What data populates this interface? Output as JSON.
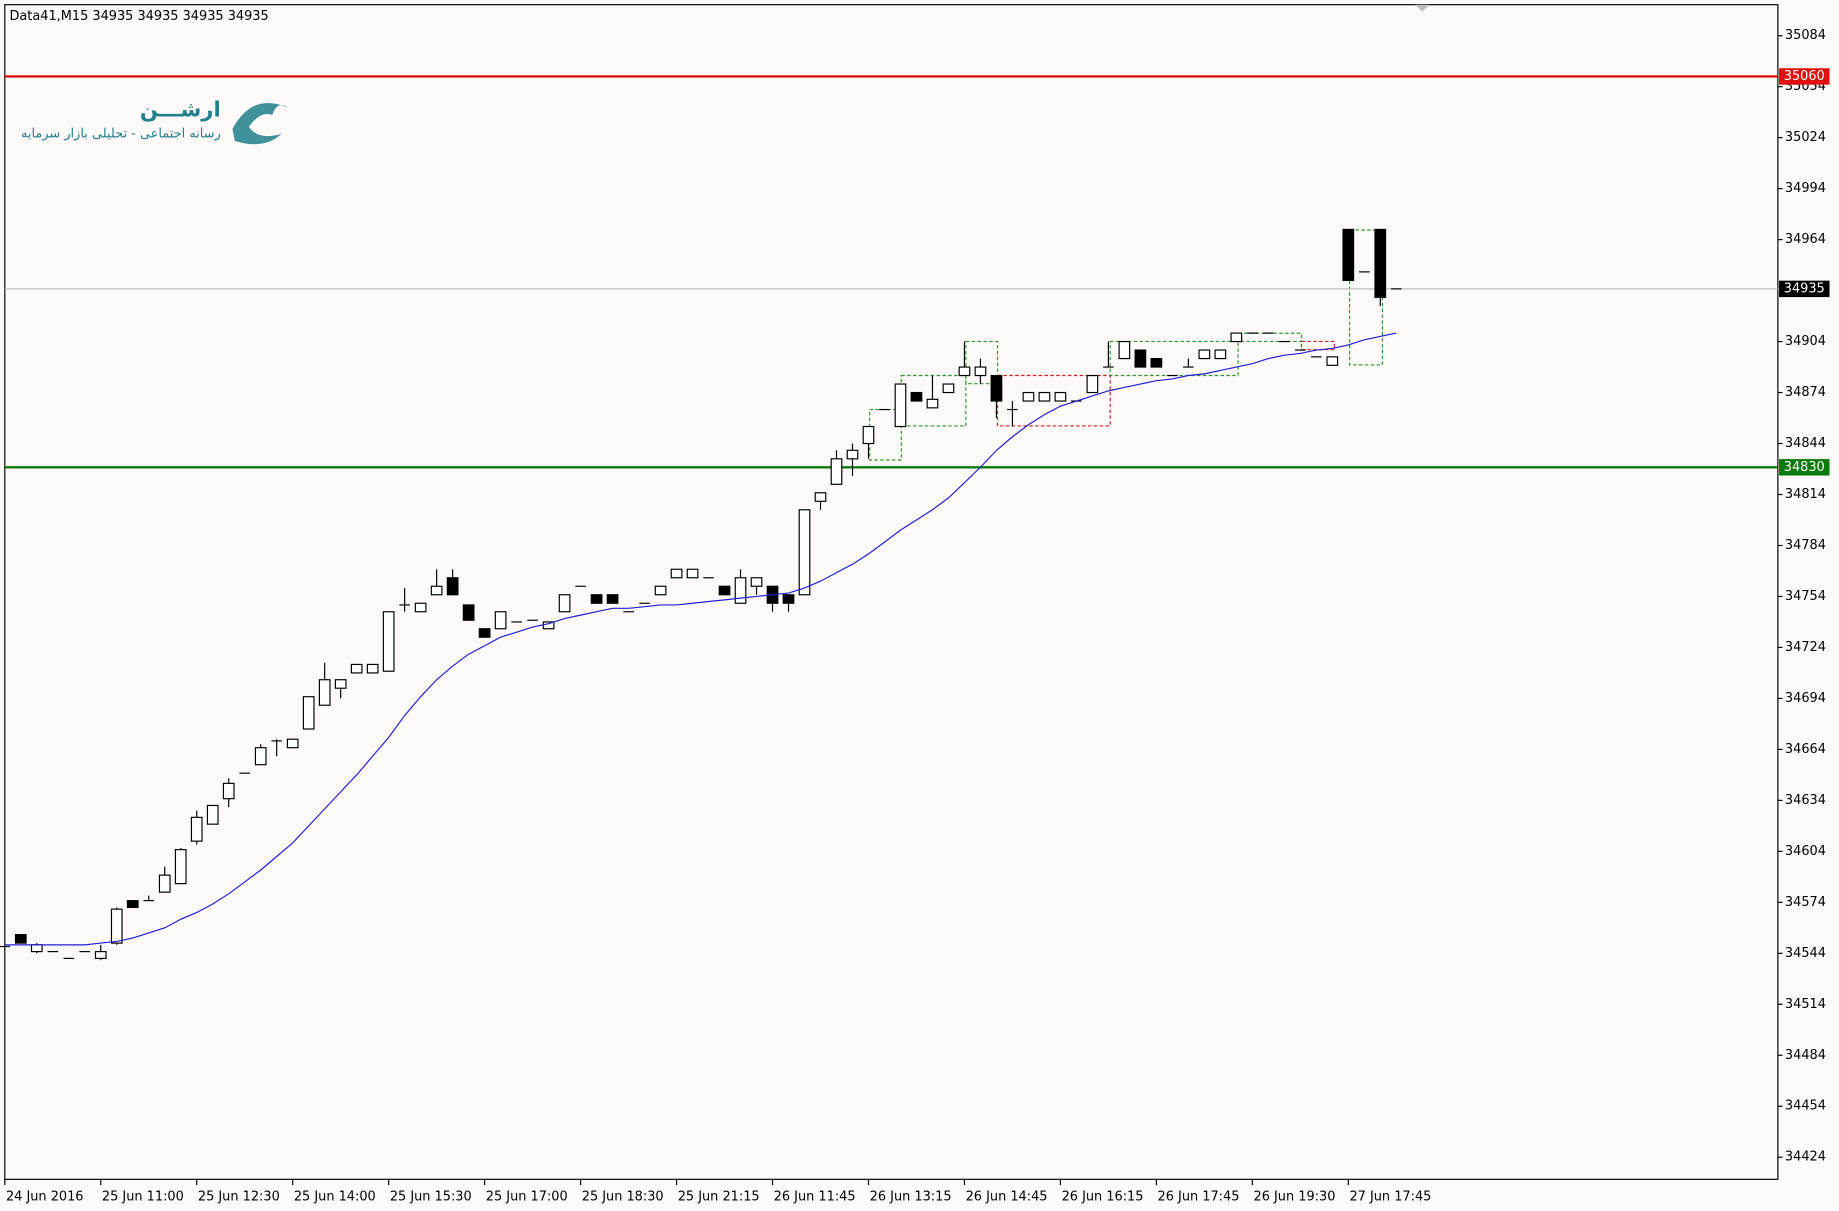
{
  "chart_data": {
    "type": "candlestick",
    "header": "Data41,M15  34935 34935 34935 34935",
    "logo_title": "ارشـــن",
    "logo_subtitle": "رسانه اجتماعی - تحلیلی بازار سرمایه",
    "categories": [
      "24 Jun 2016",
      null,
      null,
      null,
      null,
      null,
      "25 Jun 11:00",
      null,
      null,
      null,
      null,
      null,
      "25 Jun 12:30",
      null,
      null,
      null,
      null,
      null,
      "25 Jun 14:00",
      null,
      null,
      null,
      null,
      null,
      "25 Jun 15:30",
      null,
      null,
      null,
      null,
      null,
      "25 Jun 17:00",
      null,
      null,
      null,
      null,
      null,
      "25 Jun 18:30",
      null,
      null,
      null,
      null,
      null,
      "25 Jun 21:15",
      null,
      null,
      null,
      null,
      null,
      "26 Jun 11:45",
      null,
      null,
      null,
      null,
      null,
      "26 Jun 13:15",
      null,
      null,
      null,
      null,
      null,
      "26 Jun 14:45",
      null,
      null,
      null,
      null,
      null,
      "26 Jun 16:15",
      null,
      null,
      null,
      null,
      null,
      "26 Jun 17:45",
      null,
      null,
      null,
      null,
      null,
      "26 Jun 19:30",
      null,
      null,
      null,
      null,
      null,
      "27 Jun 17:45",
      null,
      null,
      null
    ],
    "open": [
      34548,
      34555,
      34545,
      34545,
      34541,
      34545,
      34541,
      34550,
      34575,
      34575,
      34580,
      34585,
      34610,
      34620,
      34635,
      34650,
      34655,
      34669,
      34665,
      34676,
      34690,
      34700,
      34709,
      34709,
      34710,
      34749,
      34745,
      34755,
      34765,
      34749,
      34735,
      34735,
      34739,
      34740,
      34735,
      34745,
      34760,
      34755,
      34755,
      34745,
      34750,
      34755,
      34765,
      34765,
      34765,
      34760,
      34750,
      34760,
      34760,
      34755,
      34755,
      34810,
      34820,
      34835,
      34844,
      34864,
      34854,
      34874,
      34865,
      34874,
      34884,
      34884,
      34884,
      34864,
      34869,
      34869,
      34869,
      34869,
      34874,
      34889,
      34894,
      34899,
      34894,
      34884,
      34889,
      34894,
      34894,
      34904,
      34909,
      34909,
      34904,
      34899,
      34895,
      34890,
      34970,
      34945,
      34970,
      34935
    ],
    "high": [
      34548,
      34555,
      34550,
      34545,
      34541,
      34545,
      34549,
      34571,
      34575,
      34578,
      34595,
      34606,
      34628,
      34631,
      34647,
      34650,
      34667,
      34670,
      34670,
      34695,
      34715,
      34705,
      34714,
      34714,
      34745,
      34759,
      34750,
      34770,
      34770,
      34749,
      34735,
      34745,
      34739,
      34740,
      34739,
      34755,
      34760,
      34755,
      34755,
      34745,
      34750,
      34760,
      34770,
      34770,
      34765,
      34760,
      34770,
      34765,
      34760,
      34755,
      34805,
      34815,
      34840,
      34844,
      34854,
      34864,
      34879,
      34874,
      34884,
      34879,
      34904,
      34894,
      34884,
      34869,
      34874,
      34874,
      34874,
      34869,
      34884,
      34904,
      34904,
      34899,
      34894,
      34884,
      34894,
      34899,
      34899,
      34909,
      34909,
      34909,
      34904,
      34899,
      34895,
      34895,
      34970,
      34945,
      34970,
      34935
    ],
    "low": [
      34548,
      34550,
      34544,
      34545,
      34541,
      34545,
      34540,
      34549,
      34571,
      34575,
      34580,
      34585,
      34608,
      34620,
      34630,
      34650,
      34655,
      34660,
      34665,
      34676,
      34690,
      34694,
      34709,
      34709,
      34710,
      34745,
      34745,
      34755,
      34755,
      34740,
      34730,
      34735,
      34739,
      34740,
      34735,
      34745,
      34760,
      34750,
      34750,
      34745,
      34750,
      34755,
      34765,
      34765,
      34765,
      34755,
      34750,
      34755,
      34745,
      34745,
      34755,
      34805,
      34820,
      34825,
      34835,
      34864,
      34854,
      34869,
      34865,
      34874,
      34884,
      34879,
      34859,
      34854,
      34869,
      34869,
      34869,
      34869,
      34874,
      34889,
      34894,
      34889,
      34889,
      34884,
      34889,
      34894,
      34894,
      34904,
      34909,
      34909,
      34904,
      34899,
      34895,
      34890,
      34940,
      34945,
      34925,
      34935
    ],
    "close": [
      34548,
      34550,
      34549,
      34545,
      34541,
      34545,
      34545,
      34570,
      34571,
      34575,
      34590,
      34605,
      34624,
      34631,
      34644,
      34650,
      34665,
      34669,
      34670,
      34695,
      34705,
      34705,
      34714,
      34714,
      34745,
      34749,
      34750,
      34760,
      34755,
      34740,
      34730,
      34745,
      34739,
      34740,
      34739,
      34755,
      34760,
      34750,
      34750,
      34745,
      34750,
      34760,
      34770,
      34770,
      34765,
      34755,
      34765,
      34765,
      34750,
      34750,
      34805,
      34815,
      34835,
      34840,
      34854,
      34864,
      34879,
      34869,
      34870,
      34879,
      34889,
      34889,
      34869,
      34864,
      34874,
      34874,
      34874,
      34869,
      34884,
      34889,
      34904,
      34889,
      34889,
      34884,
      34889,
      34899,
      34899,
      34909,
      34909,
      34909,
      34904,
      34899,
      34895,
      34895,
      34940,
      34945,
      34930,
      34935
    ],
    "ma": {
      "color": "#1f1fd6",
      "values": [
        34549,
        34549,
        34549,
        34549,
        34549,
        34549,
        34550,
        34551,
        34553,
        34556,
        34559,
        34564,
        34568,
        34573,
        34579,
        34586,
        34593,
        34601,
        34609,
        34619,
        34629,
        34639,
        34649,
        34660,
        34671,
        34684,
        34695,
        34705,
        34713,
        34720,
        34725,
        34730,
        34733,
        34736,
        34738,
        34741,
        34743,
        34745,
        34747,
        34747,
        34748,
        34749,
        34749,
        34750,
        34751,
        34752,
        34753,
        34754,
        34755,
        34756,
        34759,
        34763,
        34768,
        34773,
        34779,
        34786,
        34793,
        34799,
        34805,
        34812,
        34821,
        34830,
        34840,
        34848,
        34855,
        34861,
        34866,
        34869,
        34872,
        34875,
        34877,
        34879,
        34881,
        34882,
        34884,
        34885,
        34887,
        34889,
        34891,
        34894,
        34896,
        34897,
        34899,
        34900,
        34902,
        34905,
        34907,
        34909
      ]
    },
    "levels": [
      {
        "value": 35060,
        "color": "#e01010"
      },
      {
        "value": 34830,
        "color": "#0a7a0a"
      },
      {
        "value": 34935,
        "color": "#000000"
      }
    ],
    "ylim": [
      34411,
      35105
    ],
    "yticks": [
      35084,
      35054,
      35024,
      34994,
      34964,
      34904,
      34874,
      34844,
      34814,
      34784,
      34754,
      34724,
      34694,
      34664,
      34634,
      34604,
      34574,
      34544,
      34514,
      34484,
      34454,
      34424
    ]
  }
}
